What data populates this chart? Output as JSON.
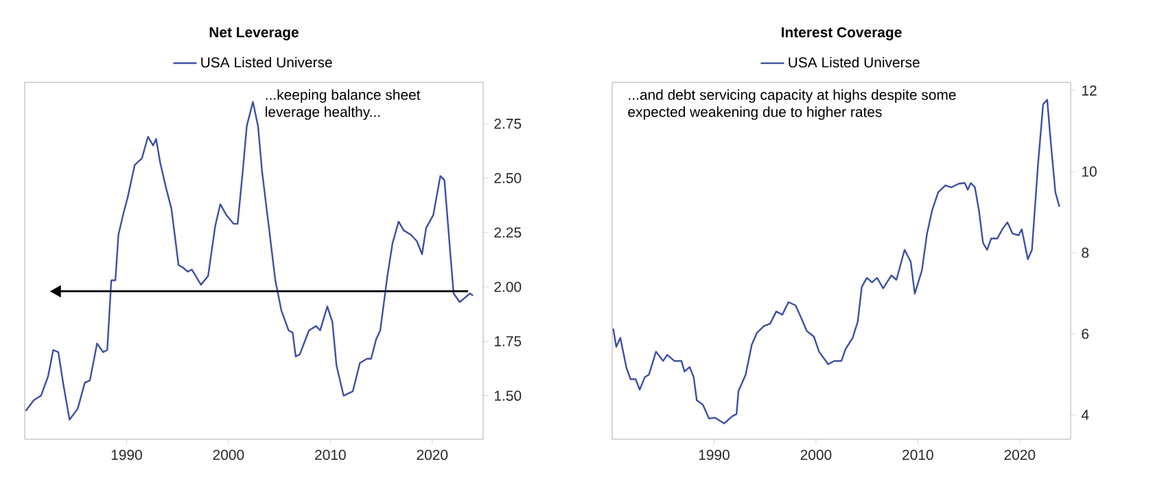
{
  "chart_data": [
    {
      "type": "line",
      "title": "Net Leverage",
      "legend": "top",
      "grid": false,
      "xlim": [
        1980,
        2025
      ],
      "ylim": [
        1.3,
        2.94
      ],
      "xticks": [
        1990,
        2000,
        2010,
        2020
      ],
      "yticks": [
        {
          "value": 1.5,
          "label": "1.50"
        },
        {
          "value": 1.75,
          "label": "1.75"
        },
        {
          "value": 2.0,
          "label": "2.00"
        },
        {
          "value": 2.25,
          "label": "2.25"
        },
        {
          "value": 2.5,
          "label": "2.50"
        },
        {
          "value": 2.75,
          "label": "2.75"
        }
      ],
      "annotations": [
        "...keeping balance sheet leverage healthy..."
      ],
      "ref_lines": [
        {
          "axis": "y",
          "value": 1.98,
          "color": "#000000"
        }
      ],
      "series": [
        {
          "name": "USA Listed Universe",
          "color": "#3d4fa3",
          "x": [
            1980.1,
            1980.9,
            1981.6,
            1982.3,
            1982.8,
            1983.3,
            1983.8,
            1984.4,
            1985.2,
            1985.9,
            1986.4,
            1987.1,
            1987.7,
            1988.1,
            1988.5,
            1988.9,
            1989.2,
            1989.7,
            1990.1,
            1990.8,
            1991.5,
            1992.1,
            1992.6,
            1992.9,
            1993.3,
            1993.9,
            1994.4,
            1995.1,
            1995.5,
            1996.0,
            1996.4,
            1997.3,
            1998.0,
            1998.7,
            1999.2,
            1999.8,
            2000.5,
            2000.9,
            2001.4,
            2001.8,
            2002.4,
            2002.9,
            2003.3,
            2003.9,
            2004.6,
            2005.2,
            2005.9,
            2006.3,
            2006.6,
            2007.0,
            2007.9,
            2008.6,
            2009.0,
            2009.7,
            2010.2,
            2010.6,
            2011.3,
            2012.2,
            2012.9,
            2013.6,
            2014.0,
            2014.5,
            2014.9,
            2015.6,
            2016.1,
            2016.7,
            2017.2,
            2017.9,
            2018.5,
            2019.0,
            2019.4,
            2020.1,
            2020.8,
            2021.2,
            2021.8,
            2022.1,
            2022.7,
            2023.2,
            2023.7,
            2024.0
          ],
          "values": [
            1.43,
            1.48,
            1.5,
            1.59,
            1.71,
            1.7,
            1.55,
            1.39,
            1.44,
            1.56,
            1.57,
            1.74,
            1.7,
            1.71,
            2.03,
            2.03,
            2.24,
            2.34,
            2.41,
            2.56,
            2.59,
            2.69,
            2.65,
            2.68,
            2.57,
            2.45,
            2.36,
            2.1,
            2.09,
            2.07,
            2.08,
            2.01,
            2.05,
            2.28,
            2.38,
            2.33,
            2.29,
            2.29,
            2.53,
            2.74,
            2.85,
            2.74,
            2.53,
            2.3,
            2.03,
            1.89,
            1.8,
            1.79,
            1.68,
            1.69,
            1.8,
            1.82,
            1.8,
            1.91,
            1.84,
            1.64,
            1.5,
            1.52,
            1.65,
            1.67,
            1.67,
            1.76,
            1.8,
            2.05,
            2.2,
            2.3,
            2.26,
            2.24,
            2.21,
            2.15,
            2.27,
            2.33,
            2.51,
            2.49,
            2.14,
            1.97,
            1.93,
            1.95,
            1.97,
            1.96
          ]
        }
      ]
    },
    {
      "type": "line",
      "title": "Interest Coverage",
      "legend": "top",
      "grid": false,
      "xlim": [
        1980,
        2025
      ],
      "ylim": [
        3.4,
        12.2
      ],
      "xticks": [
        1990,
        2000,
        2010,
        2020
      ],
      "yticks": [
        4,
        6,
        8,
        10,
        12
      ],
      "annotations": [
        "...and debt servicing capacity at highs despite some expected weakening due to higher rates"
      ],
      "series": [
        {
          "name": "USA Listed Universe",
          "color": "#3d4fa3",
          "x": [
            1980.1,
            1980.4,
            1980.8,
            1981.4,
            1981.8,
            1982.3,
            1982.7,
            1983.2,
            1983.6,
            1984.3,
            1985.0,
            1985.4,
            1986.1,
            1986.8,
            1987.1,
            1987.6,
            1988.0,
            1988.3,
            1988.9,
            1989.5,
            1990.1,
            1991.0,
            1991.8,
            1992.2,
            1992.4,
            1993.1,
            1993.7,
            1994.2,
            1994.9,
            1995.5,
            1996.1,
            1996.7,
            1997.3,
            1998.0,
            1998.5,
            1999.1,
            1999.8,
            2000.3,
            2001.2,
            2001.8,
            2002.5,
            2002.9,
            2003.6,
            2004.1,
            2004.5,
            2005.0,
            2005.5,
            2006.0,
            2006.6,
            2007.4,
            2007.9,
            2008.7,
            2009.3,
            2009.7,
            2010.4,
            2010.9,
            2011.4,
            2012.0,
            2012.7,
            2013.3,
            2014.0,
            2014.6,
            2014.9,
            2015.2,
            2015.6,
            2016.0,
            2016.4,
            2016.8,
            2017.2,
            2017.8,
            2018.3,
            2018.8,
            2019.3,
            2019.9,
            2020.2,
            2020.8,
            2021.2,
            2021.8,
            2022.3,
            2022.7,
            2023.0,
            2023.5,
            2023.9
          ],
          "values": [
            6.13,
            5.68,
            5.9,
            5.16,
            4.88,
            4.88,
            4.62,
            4.93,
            4.99,
            5.56,
            5.33,
            5.48,
            5.33,
            5.33,
            5.07,
            5.18,
            4.93,
            4.36,
            4.25,
            3.91,
            3.93,
            3.79,
            3.97,
            4.02,
            4.59,
            4.99,
            5.73,
            6.02,
            6.19,
            6.25,
            6.55,
            6.47,
            6.78,
            6.7,
            6.42,
            6.07,
            5.93,
            5.56,
            5.25,
            5.33,
            5.33,
            5.62,
            5.9,
            6.3,
            7.16,
            7.38,
            7.27,
            7.38,
            7.12,
            7.44,
            7.33,
            8.07,
            7.78,
            6.99,
            7.56,
            8.47,
            9.04,
            9.49,
            9.66,
            9.61,
            9.7,
            9.72,
            9.55,
            9.72,
            9.61,
            9.04,
            8.24,
            8.07,
            8.35,
            8.35,
            8.58,
            8.75,
            8.47,
            8.43,
            8.58,
            7.84,
            8.07,
            10.18,
            11.66,
            11.77,
            10.86,
            9.49,
            9.13
          ]
        }
      ]
    }
  ]
}
